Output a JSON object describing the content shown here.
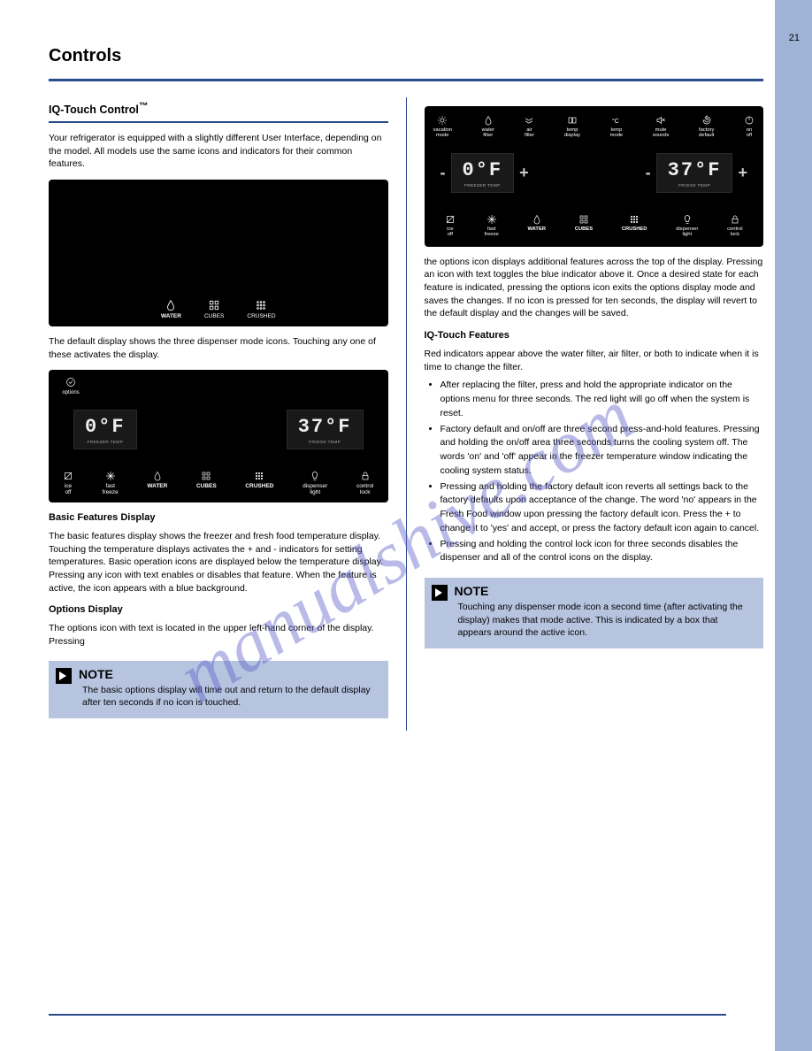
{
  "page_number": "21",
  "header": "Controls",
  "watermark": "manualshive.com",
  "col1": {
    "sect_title": "IQ-Touch   Control",
    "hr_color": "#2a4b8d",
    "para1": "Your refrigerator is equipped with a slightly different User Interface, depending on the model. All models use the same icons and indicators for their common features.",
    "panel1": {
      "bg": "#000000",
      "icons": [
        {
          "name": "water",
          "label": "WATER"
        },
        {
          "name": "cubes",
          "label": "CUBES"
        },
        {
          "name": "crushed",
          "label": "CRUSHED"
        }
      ]
    },
    "para2": "The default display shows the three dispenser mode icons. Touching any one of these activates the display.",
    "panel2": {
      "bg": "#000000",
      "options_label": "options",
      "freezer_temp": "0°F",
      "freezer_lbl": "FREEZER TEMP",
      "fridge_temp": "37°F",
      "fridge_lbl": "FRIDGE TEMP",
      "row": [
        {
          "name": "ice-off",
          "l1": "ice",
          "l2": "off"
        },
        {
          "name": "fast-freeze",
          "l1": "fast",
          "l2": "freeze"
        },
        {
          "name": "water",
          "l1": "WATER",
          "l2": ""
        },
        {
          "name": "cubes",
          "l1": "CUBES",
          "l2": ""
        },
        {
          "name": "crushed",
          "l1": "CRUSHED",
          "l2": ""
        },
        {
          "name": "dispenser-light",
          "l1": "dispenser",
          "l2": "light"
        },
        {
          "name": "control-lock",
          "l1": "control",
          "l2": "lock"
        }
      ]
    },
    "sub1": "Basic Features Display",
    "para3": "The basic features display shows the freezer and fresh food temperature display. Touching the temperature displays activates the + and - indicators for setting temperatures. Basic operation icons are displayed below the temperature display. Pressing any icon with text enables or disables that feature. When the feature is active, the icon appears with a blue background.",
    "sub2": "Options Display",
    "para4": "The options icon with text is located in the upper left-hand corner of the display. Pressing",
    "note1": {
      "title": "NOTE",
      "body": "The basic options display will time out and return to the default display after ten seconds if no icon is touched."
    }
  },
  "col2": {
    "panel3": {
      "bg": "#000000",
      "toprow": [
        {
          "name": "vacation-mode",
          "l1": "vacation",
          "l2": "mode"
        },
        {
          "name": "water-filter",
          "l1": "water",
          "l2": "filter"
        },
        {
          "name": "air-filter",
          "l1": "air",
          "l2": "filter"
        },
        {
          "name": "temp-display",
          "l1": "temp",
          "l2": "display"
        },
        {
          "name": "temp-mode",
          "l1": "temp",
          "l2": "mode"
        },
        {
          "name": "mute-sounds",
          "l1": "mute",
          "l2": "sounds"
        },
        {
          "name": "factory-default",
          "l1": "factory",
          "l2": "default"
        },
        {
          "name": "on-off",
          "l1": "on",
          "l2": "off"
        }
      ],
      "freezer_temp": "0°F",
      "freezer_lbl": "FREEZER TEMP",
      "fridge_temp": "37°F",
      "fridge_lbl": "FRIDGE TEMP",
      "botrow": [
        {
          "name": "ice-off",
          "l1": "ice",
          "l2": "off"
        },
        {
          "name": "fast-freeze",
          "l1": "fast",
          "l2": "freeze"
        },
        {
          "name": "water",
          "l1": "WATER",
          "l2": ""
        },
        {
          "name": "cubes",
          "l1": "CUBES",
          "l2": ""
        },
        {
          "name": "crushed",
          "l1": "CRUSHED",
          "l2": ""
        },
        {
          "name": "dispenser-light",
          "l1": "dispenser",
          "l2": "light"
        },
        {
          "name": "control-lock",
          "l1": "control",
          "l2": "lock"
        }
      ]
    },
    "para1": "the options icon displays additional features across the top of the display. Pressing an icon with text toggles the blue indicator above it. Once a desired state for each feature is indicated, pressing the options icon exits the options display mode and saves the changes. If no icon is pressed for ten seconds, the display will revert to the default display and the changes will be saved.",
    "sub1": "IQ-Touch    Features",
    "para2_lead": "Red indicators appear above the water filter, air filter, or both to indicate when it is time to change the filter.",
    "bullets": [
      "After replacing the filter, press and hold the appropriate indicator on the options menu for three seconds. The red light will go off when the system is reset.",
      "Factory default and on/off are three second press-and-hold features. Pressing and holding the on/off area three seconds turns the cooling system off. The words 'on' and 'off' appear in the freezer temperature window indicating the cooling system status.",
      "Pressing and holding the factory default icon reverts all settings back to the factory defaults upon acceptance of the change. The word 'no' appears in the Fresh Food window upon pressing the factory default icon. Press the + to change it to 'yes' and accept, or press the factory default icon again to cancel.",
      "Pressing and holding the control lock icon for three seconds disables the dispenser and all of the control icons on the display."
    ],
    "note2": {
      "title": "NOTE",
      "body": "Touching any dispenser mode icon a second time (after activating the display) makes that mode active. This is indicated by a box that appears around the active icon."
    },
    "tm_sym": "™"
  }
}
